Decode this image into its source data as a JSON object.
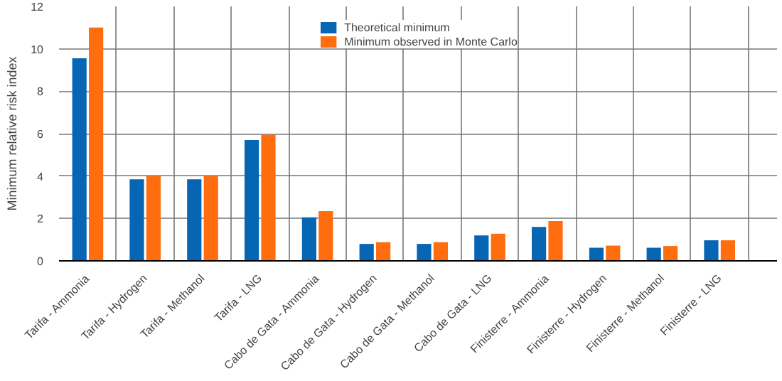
{
  "chart_data": {
    "type": "bar",
    "ylabel": "Minimum relative risk index",
    "categories": [
      "Tarifa - Ammonia",
      "Tarifa - Hydrogen",
      "Tarifa - Methanol",
      "Tarifa - LNG",
      "Cabo de Gata - Ammonia",
      "Cabo de Gata - Hydrogen",
      "Cabo de Gata - Methanol",
      "Cabo de Gata - LNG",
      "Finisterre - Ammonia",
      "Finisterre - Hydrogen",
      "Finisterre - Methanol",
      "Finisterre - LNG"
    ],
    "series": [
      {
        "name": "Theoretical minimum",
        "color": "#0766b3",
        "values": [
          9.55,
          3.85,
          3.85,
          5.7,
          2.05,
          0.8,
          0.8,
          1.2,
          1.6,
          0.62,
          0.62,
          0.97
        ]
      },
      {
        "name": "Minimum observed in Monte Carlo",
        "color": "#ff6d0e",
        "values": [
          11.0,
          4.0,
          4.0,
          5.95,
          2.35,
          0.88,
          0.88,
          1.28,
          1.88,
          0.72,
          0.7,
          0.97
        ]
      }
    ],
    "ylim": [
      0,
      12
    ],
    "yticks": [
      0,
      2,
      4,
      6,
      8,
      10,
      12
    ],
    "grid": true,
    "legend": "top"
  }
}
